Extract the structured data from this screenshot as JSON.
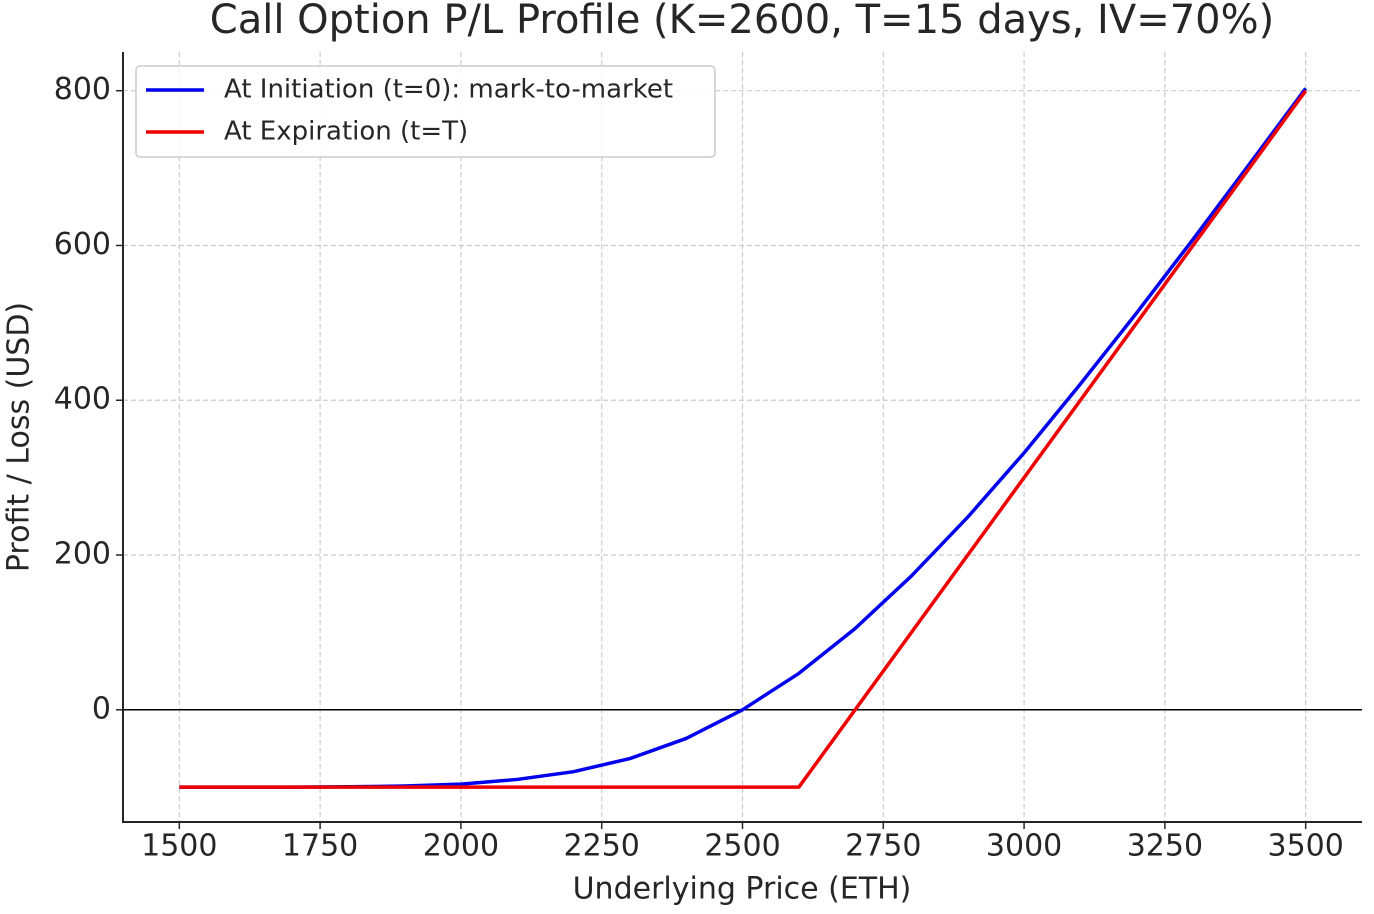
{
  "chart_data": {
    "type": "line",
    "title": "Call Option P/L Profile (K=2600, T=15 days, IV=70%)",
    "x_label": "Underlying Price (ETH)",
    "y_label": "Profit / Loss (USD)",
    "series": [
      {
        "name": "At Initiation (t=0): mark-to-market",
        "color": "#0000ee",
        "x": [
          1500,
          1600,
          1700,
          1800,
          1900,
          2000,
          2100,
          2200,
          2300,
          2400,
          2500,
          2600,
          2700,
          2800,
          2900,
          3000,
          3100,
          3200,
          3300,
          3400,
          3500
        ],
        "values": [
          -100,
          -100,
          -100,
          -99.5,
          -98.5,
          -96,
          -90,
          -80,
          -63,
          -37,
          0,
          47,
          105,
          173,
          249,
          332,
          421,
          513,
          608,
          705,
          803
        ]
      },
      {
        "name": "At Expiration (t=T)",
        "color": "#ee0000",
        "x": [
          1500,
          2600,
          3500
        ],
        "values": [
          -100,
          -100,
          800
        ]
      }
    ],
    "xlim": [
      1400,
      3600
    ],
    "xticks": [
      1500,
      1750,
      2000,
      2250,
      2500,
      2750,
      3000,
      3250,
      3500
    ],
    "ylim": [
      -145,
      850
    ],
    "yticks": [
      0,
      200,
      400,
      600,
      800
    ],
    "grid": true,
    "legend": "upper-left"
  }
}
